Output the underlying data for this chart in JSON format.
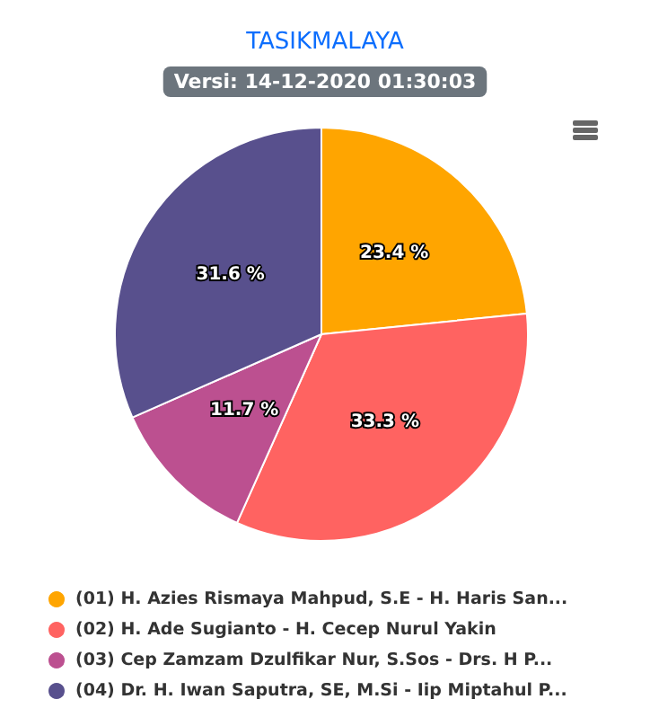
{
  "chart_data": {
    "type": "pie",
    "title": "TASIKMALAYA",
    "subtitle": "Versi: 14-12-2020 01:30:03",
    "categories": [
      "(01) H. Azies Rismaya Mahpud, S.E - H. Haris San...",
      "(02) H. Ade Sugianto - H. Cecep Nurul Yakin",
      "(03) Cep Zamzam Dzulfikar Nur, S.Sos - Drs. H P...",
      "(04) Dr. H. Iwan Saputra, SE, M.Si - Iip Miptahul P..."
    ],
    "values": [
      23.4,
      33.3,
      11.7,
      31.6
    ],
    "value_labels": [
      "23.4 %",
      "33.3 %",
      "11.7 %",
      "31.6 %"
    ],
    "colors": [
      "#ffa500",
      "#ff6361",
      "#bc5090",
      "#58508d"
    ],
    "legend": "bottom"
  }
}
